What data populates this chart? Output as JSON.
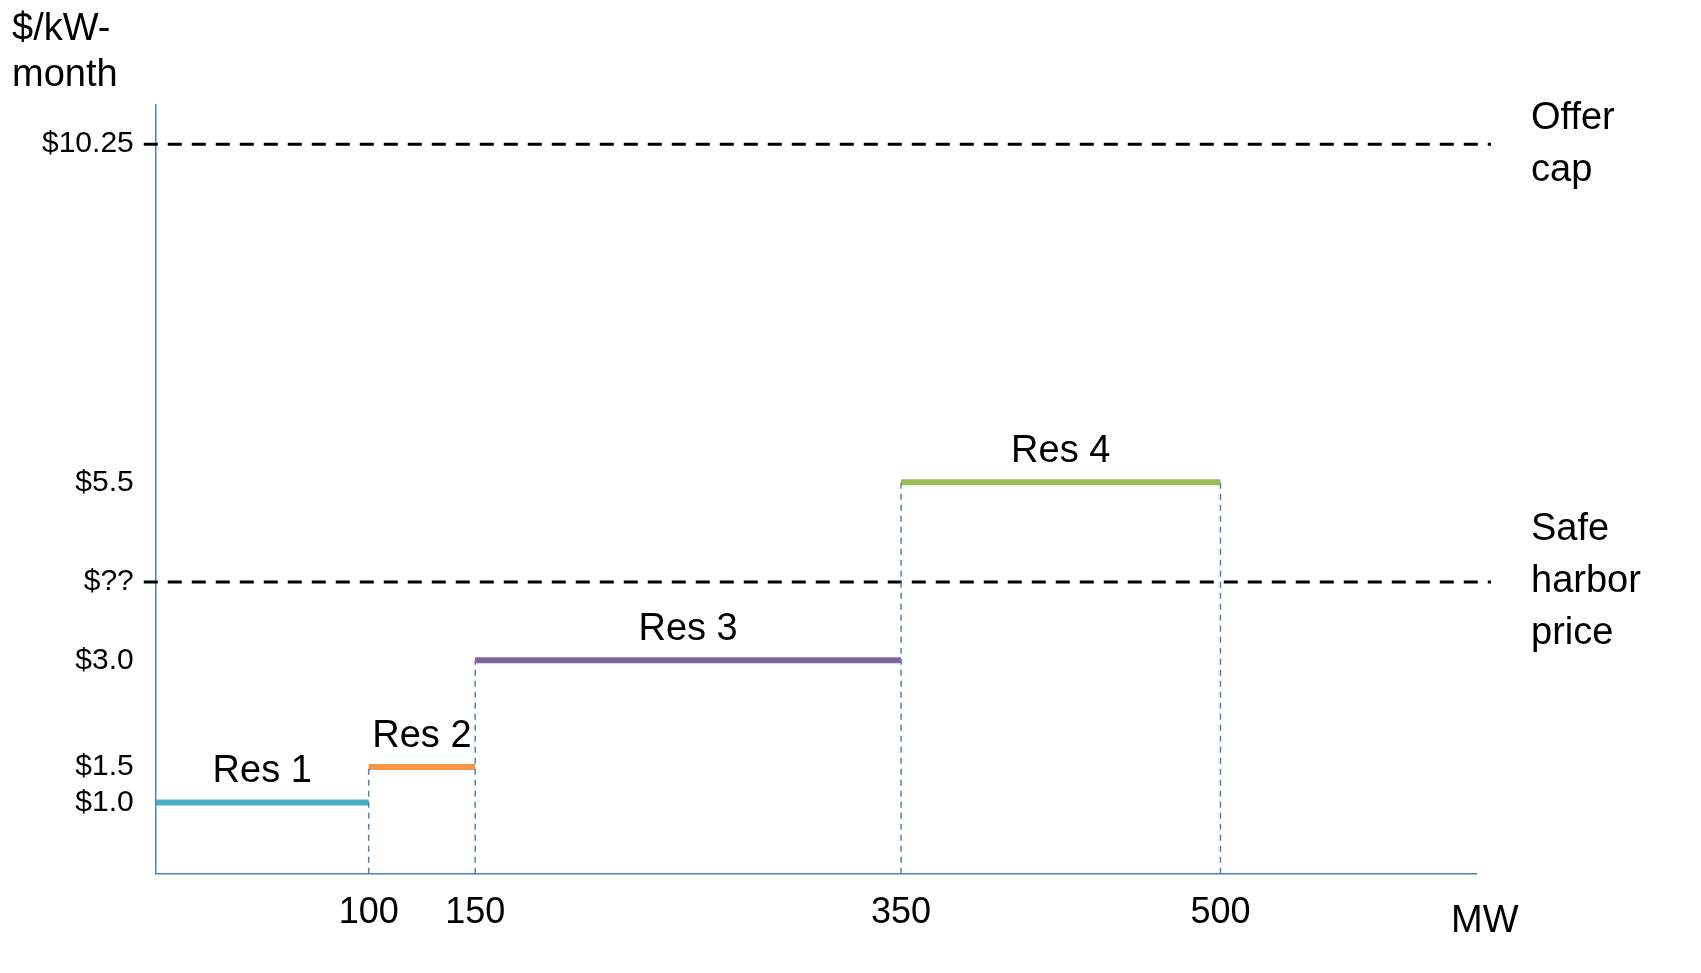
{
  "chart_data": {
    "type": "step",
    "xlabel": "MW",
    "ylabel": "$/kW-month",
    "xlim": [
      0,
      620
    ],
    "xticks": [
      100,
      150,
      350,
      500
    ],
    "ylim": [
      0,
      10.8
    ],
    "yticks": [
      {
        "value": 1.0,
        "label": "$1.0"
      },
      {
        "value": 1.5,
        "label": "$1.5"
      },
      {
        "value": 3.0,
        "label": "$3.0"
      },
      {
        "value": 4.1,
        "label": "$??"
      },
      {
        "value": 5.5,
        "label": "$5.5"
      },
      {
        "value": 10.25,
        "label": "$10.25"
      }
    ],
    "grid": false,
    "legend": false,
    "marker": "none",
    "line_style": "solid",
    "series": [
      {
        "name": "Res 1",
        "color": "#4bacc6",
        "x": [
          0,
          100
        ],
        "values": [
          1.0,
          1.0
        ]
      },
      {
        "name": "Res 2",
        "color": "#f79646",
        "x": [
          100,
          150
        ],
        "values": [
          1.5,
          1.5
        ]
      },
      {
        "name": "Res 3",
        "color": "#8064a2",
        "x": [
          150,
          350
        ],
        "values": [
          3.0,
          3.0
        ]
      },
      {
        "name": "Res 4",
        "color": "#9bbb59",
        "x": [
          350,
          500
        ],
        "values": [
          5.5,
          5.5
        ]
      }
    ],
    "ref_lines": [
      {
        "axis": "y",
        "value": 10.25,
        "label": "Offer cap",
        "color": "#000000",
        "line_style": "dashed"
      },
      {
        "axis": "y",
        "value": 4.1,
        "label": "Safe harbor price",
        "color": "#000000",
        "line_style": "dashed"
      },
      {
        "axis": "x",
        "value": 100,
        "color": "#4f81bd",
        "line_style": "dashed"
      },
      {
        "axis": "x",
        "value": 150,
        "color": "#4f81bd",
        "line_style": "dashed"
      },
      {
        "axis": "x",
        "value": 350,
        "color": "#4f81bd",
        "line_style": "dashed"
      },
      {
        "axis": "x",
        "value": 500,
        "color": "#4f81bd",
        "line_style": "dashed"
      }
    ]
  }
}
